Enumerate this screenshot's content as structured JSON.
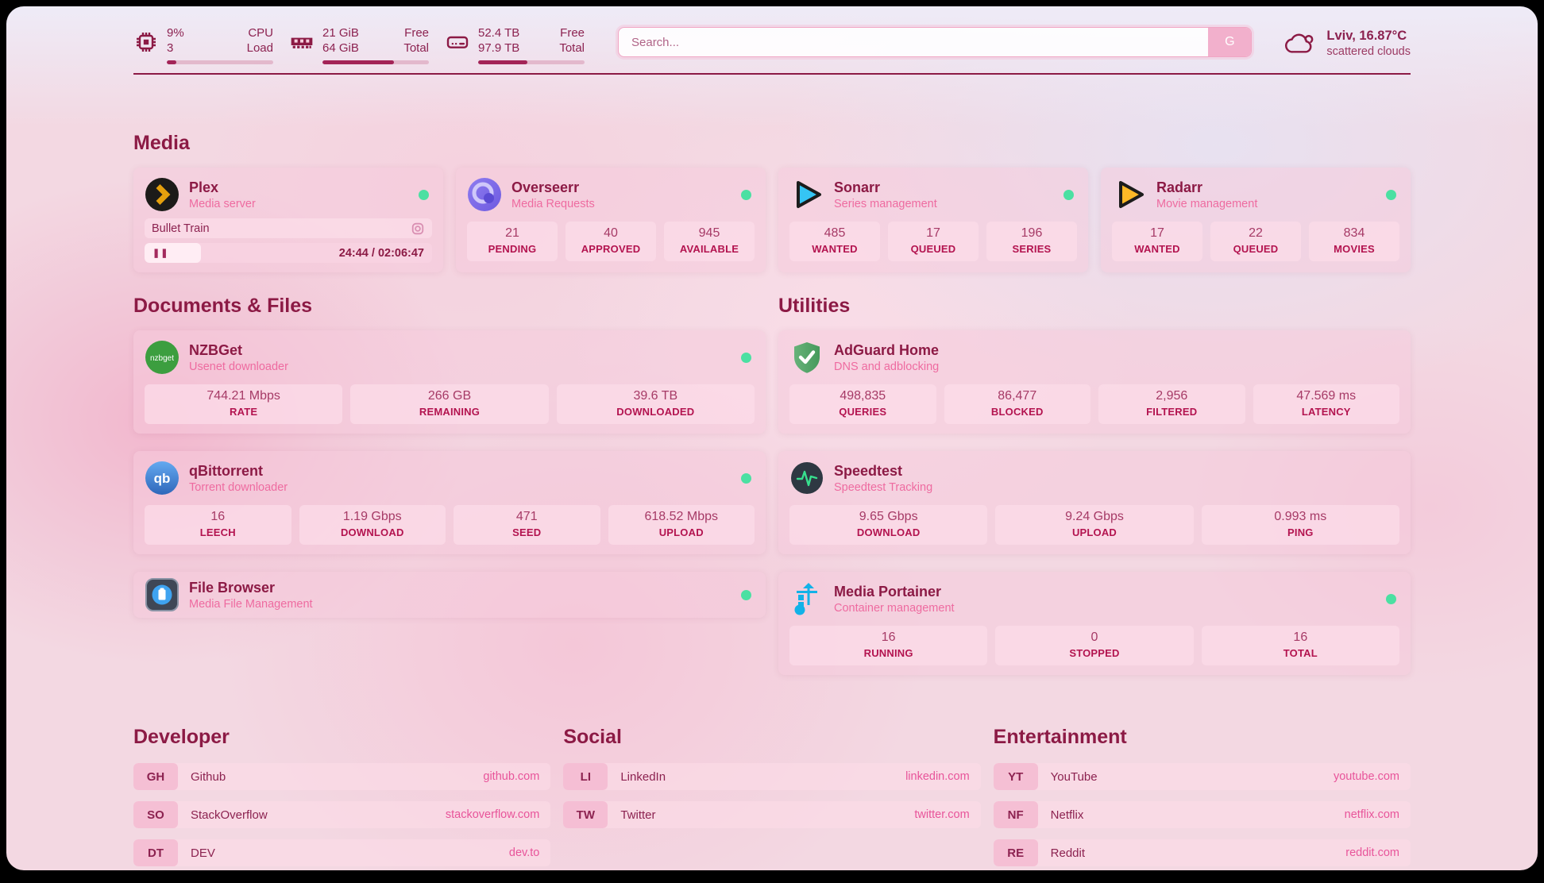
{
  "colors": {
    "accent_maroon": "#8c1a45",
    "subtitle_pink": "#ee6ba0",
    "status_online_green": "#4be0a2",
    "link_pink": "#e8549a",
    "progress_fill": "#a32457"
  },
  "icons": {
    "pause": "❚❚",
    "search_button": "G"
  },
  "topbar": {
    "resources": [
      {
        "icon": "cpu-icon",
        "values": [
          "9%",
          "3"
        ],
        "labels": [
          "CPU",
          "Load"
        ],
        "progress": 9
      },
      {
        "icon": "memory-icon",
        "values": [
          "21 GiB",
          "64 GiB"
        ],
        "labels": [
          "Free",
          "Total"
        ],
        "progress": 67
      },
      {
        "icon": "disk-icon",
        "values": [
          "52.4 TB",
          "97.9 TB"
        ],
        "labels": [
          "Free",
          "Total"
        ],
        "progress": 46
      }
    ],
    "search": {
      "placeholder": "Search...",
      "button_label": "G"
    },
    "weather": {
      "icon": "cloud-icon",
      "location_temp": "Lviv, 16.87°C",
      "condition": "scattered clouds"
    }
  },
  "sections": {
    "media": {
      "title": "Media",
      "services": [
        {
          "name": "Plex",
          "subtitle": "Media server",
          "status": "online",
          "now_playing": {
            "title": "Bullet Train",
            "time": "24:44 / 02:06:47",
            "progress": 19.5
          }
        },
        {
          "name": "Overseerr",
          "subtitle": "Media Requests",
          "status": "online",
          "stats": [
            {
              "value": "21",
              "label": "PENDING"
            },
            {
              "value": "40",
              "label": "APPROVED"
            },
            {
              "value": "945",
              "label": "AVAILABLE"
            }
          ]
        },
        {
          "name": "Sonarr",
          "subtitle": "Series management",
          "status": "online",
          "stats": [
            {
              "value": "485",
              "label": "WANTED"
            },
            {
              "value": "17",
              "label": "QUEUED"
            },
            {
              "value": "196",
              "label": "SERIES"
            }
          ]
        },
        {
          "name": "Radarr",
          "subtitle": "Movie management",
          "status": "online",
          "stats": [
            {
              "value": "17",
              "label": "WANTED"
            },
            {
              "value": "22",
              "label": "QUEUED"
            },
            {
              "value": "834",
              "label": "MOVIES"
            }
          ]
        }
      ]
    },
    "documents": {
      "title": "Documents & Files",
      "services": [
        {
          "name": "NZBGet",
          "subtitle": "Usenet downloader",
          "status": "online",
          "stats": [
            {
              "value": "744.21 Mbps",
              "label": "RATE"
            },
            {
              "value": "266 GB",
              "label": "REMAINING"
            },
            {
              "value": "39.6 TB",
              "label": "DOWNLOADED"
            }
          ]
        },
        {
          "name": "qBittorrent",
          "subtitle": "Torrent downloader",
          "status": "online",
          "stats": [
            {
              "value": "16",
              "label": "LEECH"
            },
            {
              "value": "1.19 Gbps",
              "label": "DOWNLOAD"
            },
            {
              "value": "471",
              "label": "SEED"
            },
            {
              "value": "618.52 Mbps",
              "label": "UPLOAD"
            }
          ]
        },
        {
          "name": "File Browser",
          "subtitle": "Media File Management",
          "status": "online"
        }
      ]
    },
    "utilities": {
      "title": "Utilities",
      "services": [
        {
          "name": "AdGuard Home",
          "subtitle": "DNS and adblocking",
          "stats": [
            {
              "value": "498,835",
              "label": "QUERIES"
            },
            {
              "value": "86,477",
              "label": "BLOCKED"
            },
            {
              "value": "2,956",
              "label": "FILTERED"
            },
            {
              "value": "47.569 ms",
              "label": "LATENCY"
            }
          ]
        },
        {
          "name": "Speedtest",
          "subtitle": "Speedtest Tracking",
          "stats": [
            {
              "value": "9.65 Gbps",
              "label": "DOWNLOAD"
            },
            {
              "value": "9.24 Gbps",
              "label": "UPLOAD"
            },
            {
              "value": "0.993 ms",
              "label": "PING"
            }
          ]
        },
        {
          "name": "Media Portainer",
          "subtitle": "Container management",
          "status": "online",
          "stats": [
            {
              "value": "16",
              "label": "RUNNING"
            },
            {
              "value": "0",
              "label": "STOPPED"
            },
            {
              "value": "16",
              "label": "TOTAL"
            }
          ]
        }
      ]
    },
    "developer": {
      "title": "Developer",
      "bookmarks": [
        {
          "abbr": "GH",
          "name": "Github",
          "url": "github.com"
        },
        {
          "abbr": "SO",
          "name": "StackOverflow",
          "url": "stackoverflow.com"
        },
        {
          "abbr": "DT",
          "name": "DEV",
          "url": "dev.to"
        }
      ]
    },
    "social": {
      "title": "Social",
      "bookmarks": [
        {
          "abbr": "LI",
          "name": "LinkedIn",
          "url": "linkedin.com"
        },
        {
          "abbr": "TW",
          "name": "Twitter",
          "url": "twitter.com"
        }
      ]
    },
    "entertainment": {
      "title": "Entertainment",
      "bookmarks": [
        {
          "abbr": "YT",
          "name": "YouTube",
          "url": "youtube.com"
        },
        {
          "abbr": "NF",
          "name": "Netflix",
          "url": "netflix.com"
        },
        {
          "abbr": "RE",
          "name": "Reddit",
          "url": "reddit.com"
        }
      ]
    }
  }
}
